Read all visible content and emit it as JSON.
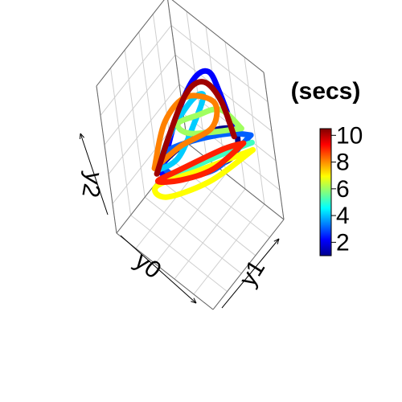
{
  "chart_data": {
    "type": "line",
    "subtype": "3d-trajectory",
    "title": "",
    "axes": {
      "x": "y0",
      "y": "y1",
      "z": "y2"
    },
    "grid": true,
    "box": true,
    "colorbar": {
      "title": "(secs)",
      "ticks": [
        "2",
        "4",
        "6",
        "8",
        "10"
      ],
      "range": [
        1,
        10.5
      ],
      "palette": [
        "#00008F",
        "#0000FF",
        "#0080FF",
        "#00FFFF",
        "#80FF80",
        "#FFFF00",
        "#FF8000",
        "#FF0000",
        "#800000"
      ],
      "placement": "right"
    },
    "series": [
      {
        "t": 1,
        "color": "#00008B",
        "points": [
          [
            0.62,
            0.25,
            0.45
          ],
          [
            0.45,
            0.45,
            0.42
          ],
          [
            0.25,
            0.75,
            0.45
          ],
          [
            0.3,
            0.85,
            0.55
          ],
          [
            0.5,
            0.6,
            0.55
          ],
          [
            0.62,
            0.3,
            0.5
          ],
          [
            0.62,
            0.25,
            0.45
          ]
        ]
      },
      {
        "t": 2,
        "color": "#0000FF",
        "points": [
          [
            0.3,
            0.85,
            0.55
          ],
          [
            0.35,
            0.8,
            0.8
          ],
          [
            0.4,
            0.75,
            0.95
          ],
          [
            0.5,
            0.65,
            0.9
          ],
          [
            0.58,
            0.45,
            0.7
          ],
          [
            0.62,
            0.25,
            0.45
          ]
        ]
      },
      {
        "t": 3,
        "color": "#0060FF",
        "points": [
          [
            0.2,
            0.95,
            0.5
          ],
          [
            0.3,
            0.8,
            0.55
          ],
          [
            0.5,
            0.55,
            0.55
          ],
          [
            0.62,
            0.3,
            0.55
          ],
          [
            0.55,
            0.3,
            0.45
          ],
          [
            0.35,
            0.6,
            0.4
          ],
          [
            0.2,
            0.95,
            0.5
          ]
        ]
      },
      {
        "t": 4,
        "color": "#00CCFF",
        "points": [
          [
            0.62,
            0.2,
            0.5
          ],
          [
            0.55,
            0.35,
            0.7
          ],
          [
            0.45,
            0.55,
            0.85
          ],
          [
            0.4,
            0.65,
            0.85
          ],
          [
            0.45,
            0.55,
            0.7
          ],
          [
            0.55,
            0.4,
            0.5
          ],
          [
            0.62,
            0.2,
            0.5
          ]
        ]
      },
      {
        "t": 5,
        "color": "#40FFC0",
        "points": [
          [
            0.2,
            0.95,
            0.45
          ],
          [
            0.35,
            0.75,
            0.42
          ],
          [
            0.5,
            0.5,
            0.4
          ],
          [
            0.62,
            0.25,
            0.4
          ],
          [
            0.4,
            0.6,
            0.45
          ],
          [
            0.2,
            0.95,
            0.45
          ]
        ]
      },
      {
        "t": 6,
        "color": "#A0FF60",
        "points": [
          [
            0.25,
            0.9,
            0.55
          ],
          [
            0.35,
            0.78,
            0.7
          ],
          [
            0.45,
            0.6,
            0.72
          ],
          [
            0.55,
            0.45,
            0.7
          ],
          [
            0.5,
            0.55,
            0.6
          ],
          [
            0.25,
            0.9,
            0.55
          ]
        ]
      },
      {
        "t": 7,
        "color": "#FFFF00",
        "points": [
          [
            0.2,
            0.95,
            0.4
          ],
          [
            0.4,
            0.6,
            0.3
          ],
          [
            0.6,
            0.25,
            0.3
          ],
          [
            0.65,
            0.2,
            0.38
          ],
          [
            0.45,
            0.55,
            0.38
          ],
          [
            0.2,
            0.95,
            0.4
          ]
        ]
      },
      {
        "t": 8,
        "color": "#FF8000",
        "points": [
          [
            0.65,
            0.2,
            0.5
          ],
          [
            0.6,
            0.35,
            0.75
          ],
          [
            0.5,
            0.55,
            0.85
          ],
          [
            0.38,
            0.75,
            0.75
          ],
          [
            0.4,
            0.7,
            0.6
          ],
          [
            0.55,
            0.45,
            0.55
          ],
          [
            0.65,
            0.2,
            0.5
          ]
        ]
      },
      {
        "t": 9,
        "color": "#FF2000",
        "points": [
          [
            0.25,
            0.9,
            0.45
          ],
          [
            0.4,
            0.65,
            0.35
          ],
          [
            0.55,
            0.4,
            0.35
          ],
          [
            0.65,
            0.22,
            0.4
          ],
          [
            0.55,
            0.4,
            0.42
          ],
          [
            0.35,
            0.75,
            0.45
          ],
          [
            0.25,
            0.9,
            0.45
          ]
        ]
      },
      {
        "t": 10,
        "color": "#A00000",
        "points": [
          [
            0.3,
            0.85,
            0.5
          ],
          [
            0.35,
            0.8,
            0.75
          ],
          [
            0.42,
            0.7,
            0.9
          ],
          [
            0.52,
            0.58,
            0.85
          ],
          [
            0.6,
            0.4,
            0.65
          ],
          [
            0.65,
            0.22,
            0.45
          ]
        ]
      }
    ]
  }
}
